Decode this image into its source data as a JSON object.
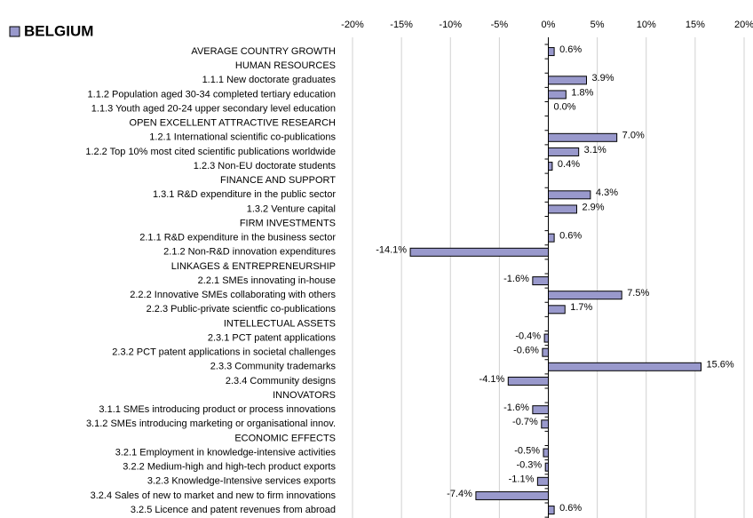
{
  "chart_data": {
    "type": "bar",
    "orientation": "horizontal",
    "categories": [
      "AVERAGE COUNTRY GROWTH",
      "HUMAN RESOURCES",
      "1.1.1 New doctorate graduates",
      "1.1.2 Population aged 30-34 completed tertiary education",
      "1.1.3 Youth aged 20-24 upper secondary level education",
      "OPEN EXCELLENT ATTRACTIVE RESEARCH",
      "1.2.1 International scientific co-publications",
      "1.2.2 Top 10% most cited scientific publications worldwide",
      "1.2.3 Non-EU doctorate students",
      "FINANCE AND SUPPORT",
      "1.3.1 R&D expenditure in the public sector",
      "1.3.2 Venture capital",
      "FIRM INVESTMENTS",
      "2.1.1 R&D expenditure in the business sector",
      "2.1.2 Non-R&D innovation expenditures",
      "LINKAGES & ENTREPRENEURSHIP",
      "2.2.1 SMEs innovating in-house",
      "2.2.2 Innovative SMEs collaborating with others",
      "2.2.3 Public-private scientfic co-publications",
      "INTELLECTUAL ASSETS",
      "2.3.1 PCT patent applications",
      "2.3.2 PCT patent applications in societal challenges",
      "2.3.3 Community trademarks",
      "2.3.4 Community designs",
      "INNOVATORS",
      "3.1.1 SMEs introducing product or process innovations",
      "3.1.2 SMEs introducing marketing or organisational innov.",
      "ECONOMIC EFFECTS",
      "3.2.1 Employment in knowledge-intensive activities",
      "3.2.2 Medium-high and high-tech product exports",
      "3.2.3 Knowledge-Intensive services exports",
      "3.2.4 Sales of new to market and new to firm innovations",
      "3.2.5 Licence and patent revenues from abroad"
    ],
    "series": [
      {
        "name": "BELGIUM",
        "color": "#9999cc",
        "values": [
          0.6,
          null,
          3.9,
          1.8,
          0.0,
          null,
          7.0,
          3.1,
          0.4,
          null,
          4.3,
          2.9,
          null,
          0.6,
          -14.1,
          null,
          -1.6,
          7.5,
          1.7,
          null,
          -0.4,
          -0.6,
          15.6,
          -4.1,
          null,
          -1.6,
          -0.7,
          null,
          -0.5,
          -0.3,
          -1.1,
          -7.4,
          0.6
        ],
        "value_labels": [
          "0.6%",
          null,
          "3.9%",
          "1.8%",
          "0.0%",
          null,
          "7.0%",
          "3.1%",
          "0.4%",
          null,
          "4.3%",
          "2.9%",
          null,
          "0.6%",
          "-14.1%",
          null,
          "-1.6%",
          "7.5%",
          "1.7%",
          null,
          "-0.4%",
          "-0.6%",
          "15.6%",
          "-4.1%",
          null,
          "-1.6%",
          "-0.7%",
          null,
          "-0.5%",
          "-0.3%",
          "-1.1%",
          "-7.4%",
          "0.6%"
        ]
      }
    ],
    "xlim": [
      -20,
      20
    ],
    "xticks": [
      {
        "value": -20,
        "label": "-20%"
      },
      {
        "value": -15,
        "label": "-15%"
      },
      {
        "value": -10,
        "label": "-10%"
      },
      {
        "value": -5,
        "label": "-5%"
      },
      {
        "value": 0,
        "label": "0%"
      },
      {
        "value": 5,
        "label": "5%"
      },
      {
        "value": 10,
        "label": "10%"
      },
      {
        "value": 15,
        "label": "15%"
      },
      {
        "value": 20,
        "label": "20%"
      }
    ],
    "grid": true,
    "legend": "top-left"
  }
}
